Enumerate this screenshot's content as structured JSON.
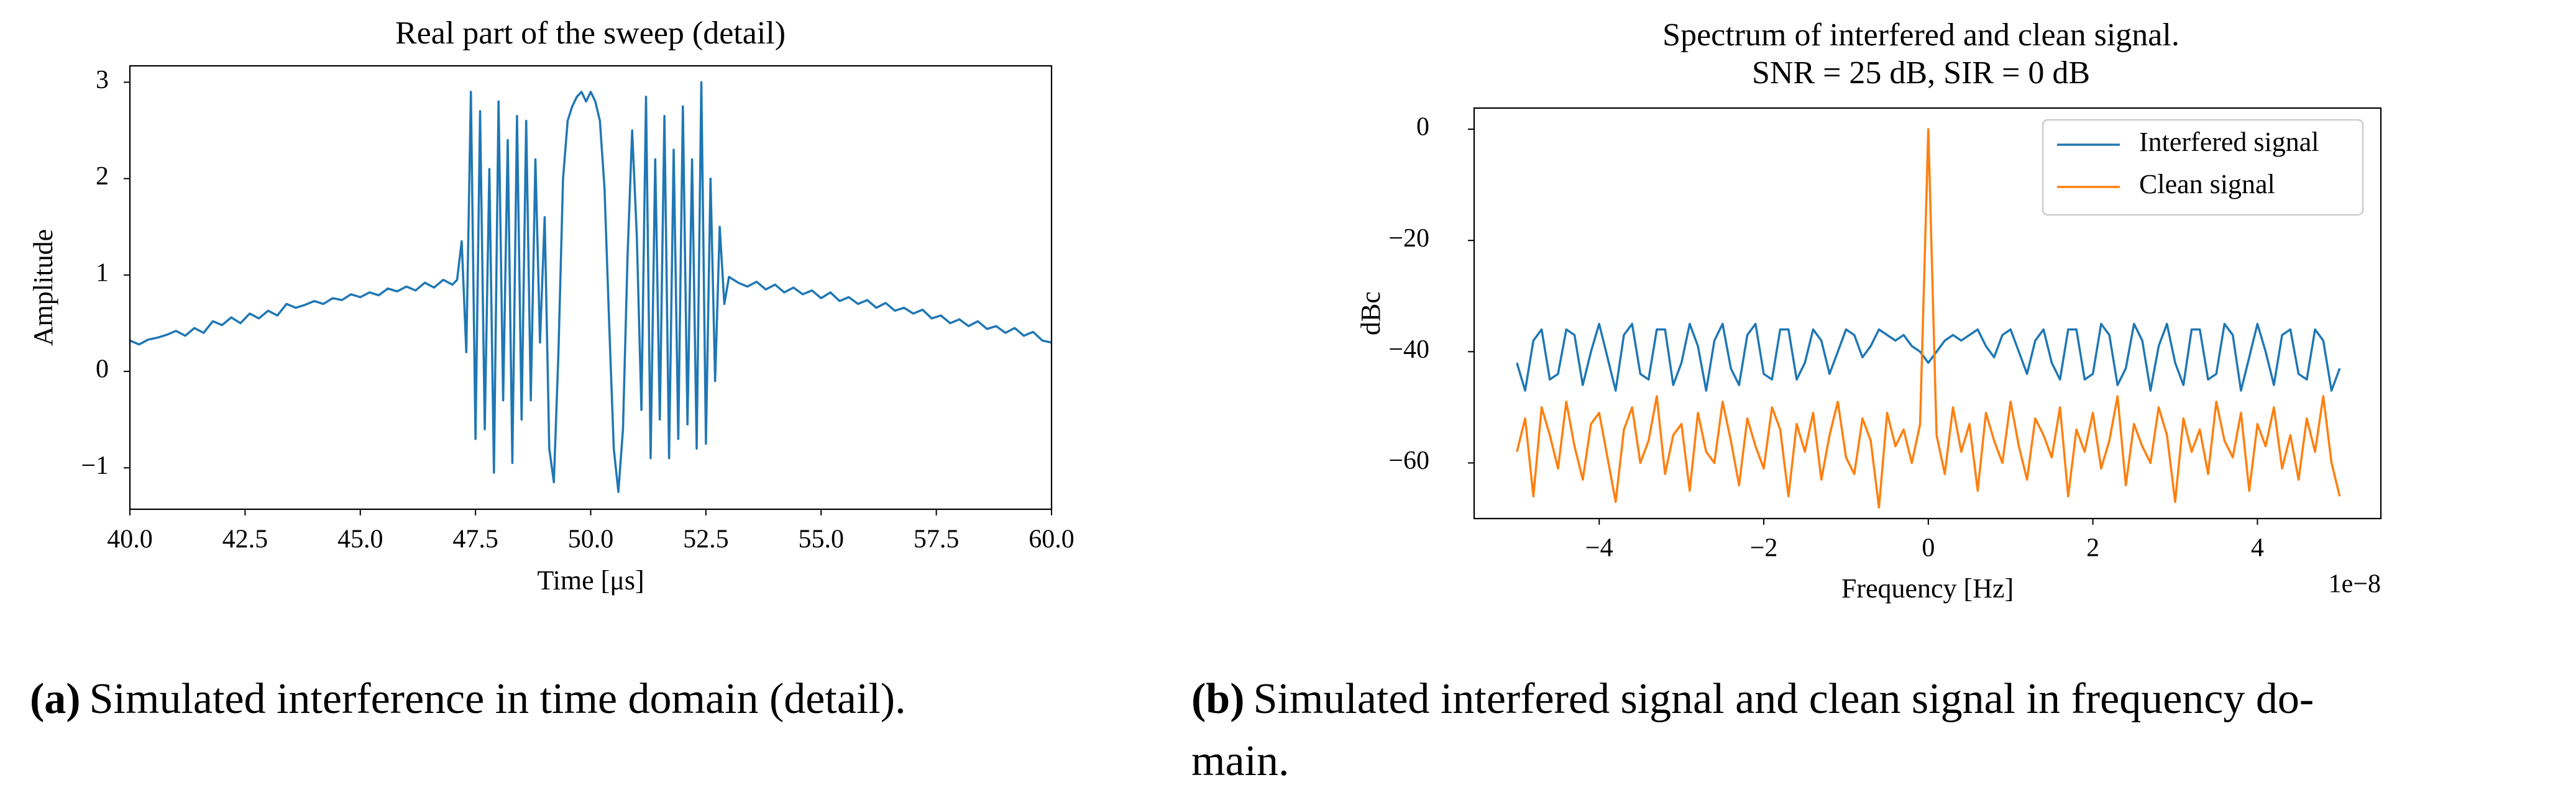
{
  "chart_data": [
    {
      "type": "line",
      "title": "Real part of the sweep (detail)",
      "xlabel": "Time [μs]",
      "ylabel": "Amplitude",
      "color": "#1f77b4",
      "x": [
        40.0,
        40.2,
        40.4,
        40.6,
        40.8,
        41.0,
        41.2,
        41.4,
        41.6,
        41.8,
        42.0,
        42.2,
        42.4,
        42.6,
        42.8,
        43.0,
        43.2,
        43.4,
        43.6,
        43.8,
        44.0,
        44.2,
        44.4,
        44.6,
        44.8,
        45.0,
        45.2,
        45.4,
        45.6,
        45.8,
        46.0,
        46.2,
        46.4,
        46.6,
        46.8,
        47.0,
        47.1,
        47.2,
        47.3,
        47.4,
        47.5,
        47.6,
        47.7,
        47.8,
        47.9,
        48.0,
        48.1,
        48.2,
        48.3,
        48.4,
        48.5,
        48.6,
        48.7,
        48.8,
        48.9,
        49.0,
        49.1,
        49.2,
        49.3,
        49.4,
        49.5,
        49.6,
        49.7,
        49.8,
        49.9,
        50.0,
        50.1,
        50.2,
        50.3,
        50.4,
        50.5,
        50.6,
        50.7,
        50.8,
        50.9,
        51.0,
        51.1,
        51.2,
        51.3,
        51.4,
        51.5,
        51.6,
        51.7,
        51.8,
        51.9,
        52.0,
        52.1,
        52.2,
        52.3,
        52.4,
        52.5,
        52.6,
        52.7,
        52.8,
        52.9,
        53.0,
        53.2,
        53.4,
        53.6,
        53.8,
        54.0,
        54.2,
        54.4,
        54.6,
        54.8,
        55.0,
        55.2,
        55.4,
        55.6,
        55.8,
        56.0,
        56.2,
        56.4,
        56.6,
        56.8,
        57.0,
        57.2,
        57.4,
        57.6,
        57.8,
        58.0,
        58.2,
        58.4,
        58.6,
        58.8,
        59.0,
        59.2,
        59.4,
        59.6,
        59.8,
        60.0
      ],
      "values": [
        0.32,
        0.28,
        0.33,
        0.35,
        0.38,
        0.42,
        0.37,
        0.45,
        0.4,
        0.52,
        0.48,
        0.56,
        0.5,
        0.6,
        0.55,
        0.63,
        0.58,
        0.7,
        0.66,
        0.69,
        0.73,
        0.7,
        0.76,
        0.74,
        0.8,
        0.77,
        0.82,
        0.79,
        0.86,
        0.83,
        0.88,
        0.84,
        0.92,
        0.87,
        0.95,
        0.9,
        0.95,
        1.35,
        0.2,
        2.9,
        -0.7,
        2.7,
        -0.6,
        2.1,
        -1.05,
        2.8,
        -0.3,
        2.4,
        -0.95,
        2.65,
        -0.5,
        2.6,
        -0.3,
        2.2,
        0.3,
        1.6,
        -0.8,
        -1.15,
        0.2,
        2.0,
        2.6,
        2.75,
        2.85,
        2.9,
        2.8,
        2.9,
        2.8,
        2.6,
        1.9,
        0.5,
        -0.8,
        -1.25,
        -0.6,
        1.2,
        2.5,
        1.4,
        -0.4,
        2.85,
        -0.9,
        2.2,
        -0.5,
        2.65,
        -0.9,
        2.3,
        -0.7,
        2.75,
        -0.55,
        2.2,
        -0.8,
        3.0,
        -0.75,
        2.0,
        -0.1,
        1.5,
        0.7,
        0.98,
        0.92,
        0.88,
        0.93,
        0.85,
        0.9,
        0.82,
        0.87,
        0.8,
        0.84,
        0.76,
        0.82,
        0.73,
        0.77,
        0.7,
        0.74,
        0.66,
        0.71,
        0.63,
        0.66,
        0.6,
        0.64,
        0.55,
        0.58,
        0.5,
        0.54,
        0.47,
        0.52,
        0.44,
        0.47,
        0.4,
        0.45,
        0.37,
        0.41,
        0.32,
        0.3
      ],
      "xlim": [
        40,
        60
      ],
      "ylim": [
        -1.43,
        3.17
      ],
      "xticks": [
        {
          "value": 40,
          "label": "40.0"
        },
        42.5,
        {
          "value": 45,
          "label": "45.0"
        },
        47.5,
        {
          "value": 50,
          "label": "50.0"
        },
        52.5,
        {
          "value": 55,
          "label": "55.0"
        },
        57.5,
        {
          "value": 60,
          "label": "60.0"
        }
      ],
      "yticks": [
        {
          "value": -1,
          "label": "−1"
        },
        0,
        1,
        2,
        3
      ]
    },
    {
      "type": "line",
      "title": [
        "Spectrum of interfered and clean signal.",
        "SNR = 25 dB, SIR = 0 dB"
      ],
      "xlabel": "Frequency [Hz]",
      "ylabel": "dBc",
      "x_offset_label": "1e−8",
      "legend": "upper right",
      "x": [
        -5.0,
        -4.9,
        -4.8,
        -4.7,
        -4.6,
        -4.5,
        -4.4,
        -4.3,
        -4.2,
        -4.1,
        -4.0,
        -3.9,
        -3.8,
        -3.7,
        -3.6,
        -3.5,
        -3.4,
        -3.3,
        -3.2,
        -3.1,
        -3.0,
        -2.9,
        -2.8,
        -2.7,
        -2.6,
        -2.5,
        -2.4,
        -2.3,
        -2.2,
        -2.1,
        -2.0,
        -1.9,
        -1.8,
        -1.7,
        -1.6,
        -1.5,
        -1.4,
        -1.3,
        -1.2,
        -1.1,
        -1.0,
        -0.9,
        -0.8,
        -0.7,
        -0.6,
        -0.5,
        -0.4,
        -0.3,
        -0.2,
        -0.1,
        0.0,
        0.1,
        0.2,
        0.3,
        0.4,
        0.5,
        0.6,
        0.7,
        0.8,
        0.9,
        1.0,
        1.1,
        1.2,
        1.3,
        1.4,
        1.5,
        1.6,
        1.7,
        1.8,
        1.9,
        2.0,
        2.1,
        2.2,
        2.3,
        2.4,
        2.5,
        2.6,
        2.7,
        2.8,
        2.9,
        3.0,
        3.1,
        3.2,
        3.3,
        3.4,
        3.5,
        3.6,
        3.7,
        3.8,
        3.9,
        4.0,
        4.1,
        4.2,
        4.3,
        4.4,
        4.5,
        4.6,
        4.7,
        4.8,
        4.9,
        5.0
      ],
      "series": [
        {
          "name": "Interfered signal",
          "color": "#1f77b4",
          "values": [
            -42,
            -47,
            -38,
            -36,
            -45,
            -44,
            -36,
            -37,
            -46,
            -40,
            -35,
            -41,
            -47,
            -37,
            -35,
            -44,
            -45,
            -36,
            -36,
            -46,
            -42,
            -35,
            -39,
            -47,
            -38,
            -35,
            -43,
            -46,
            -37,
            -35,
            -44,
            -45,
            -36,
            -36,
            -45,
            -42,
            -36,
            -38,
            -44,
            -40,
            -36,
            -37,
            -41,
            -39,
            -36,
            -37,
            -38,
            -37,
            -39,
            -40,
            -42,
            -40,
            -38,
            -37,
            -38,
            -37,
            -36,
            -39,
            -41,
            -37,
            -36,
            -40,
            -44,
            -38,
            -36,
            -42,
            -45,
            -36,
            -36,
            -45,
            -44,
            -35,
            -37,
            -46,
            -43,
            -35,
            -38,
            -47,
            -39,
            -35,
            -42,
            -46,
            -36,
            -36,
            -45,
            -44,
            -35,
            -37,
            -47,
            -41,
            -35,
            -40,
            -46,
            -37,
            -36,
            -44,
            -45,
            -36,
            -38,
            -47,
            -43
          ]
        },
        {
          "name": "Clean signal",
          "color": "#ff7f0e",
          "values": [
            -58,
            -52,
            -66,
            -50,
            -55,
            -61,
            -49,
            -57,
            -63,
            -53,
            -51,
            -59,
            -67,
            -54,
            -50,
            -60,
            -56,
            -48,
            -62,
            -55,
            -53,
            -65,
            -51,
            -58,
            -60,
            -49,
            -56,
            -64,
            -52,
            -57,
            -61,
            -50,
            -54,
            -66,
            -53,
            -58,
            -51,
            -63,
            -55,
            -49,
            -59,
            -62,
            -52,
            -56,
            -68,
            -51,
            -57,
            -54,
            -60,
            -53,
            0,
            -55,
            -62,
            -50,
            -58,
            -53,
            -65,
            -51,
            -56,
            -60,
            -49,
            -57,
            -63,
            -52,
            -55,
            -59,
            -50,
            -66,
            -54,
            -58,
            -51,
            -61,
            -56,
            -48,
            -64,
            -53,
            -57,
            -60,
            -50,
            -55,
            -67,
            -52,
            -58,
            -54,
            -62,
            -49,
            -56,
            -59,
            -51,
            -65,
            -53,
            -57,
            -50,
            -61,
            -55,
            -63,
            -52,
            -58,
            -48,
            -60,
            -66
          ]
        }
      ],
      "xlim": [
        -5.52,
        5.5
      ],
      "ylim": [
        -70,
        3.8
      ],
      "xticks": [
        {
          "value": -4,
          "label": "−4"
        },
        {
          "value": -2,
          "label": "−2"
        },
        0,
        2,
        4
      ],
      "yticks": [
        0,
        {
          "value": -20,
          "label": "−20"
        },
        {
          "value": -40,
          "label": "−40"
        },
        {
          "value": -60,
          "label": "−60"
        }
      ]
    }
  ],
  "captions": [
    {
      "label": "(a)",
      "text": [
        "Simulated interference in time domain (detail)."
      ]
    },
    {
      "label": "(b)",
      "text": [
        "Simulated interfered signal and clean signal in frequency do-",
        "main."
      ]
    }
  ]
}
